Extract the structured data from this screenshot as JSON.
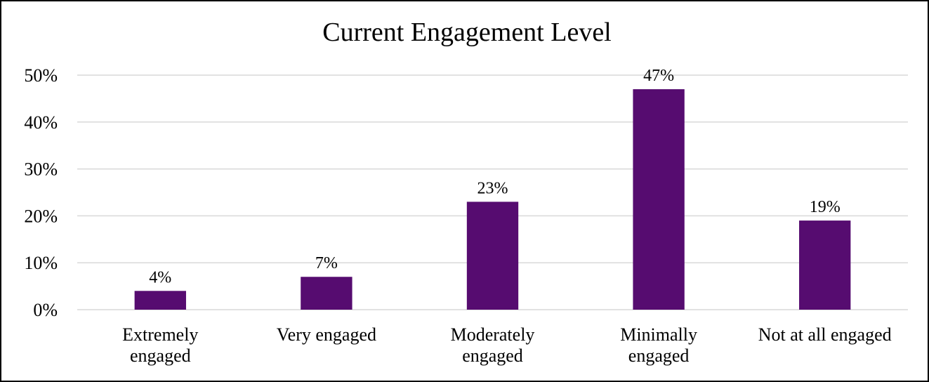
{
  "chart_data": {
    "type": "bar",
    "title": "Current Engagement Level",
    "categories": [
      "Extremely\nengaged",
      "Very engaged",
      "Moderately\nengaged",
      "Minimally\nengaged",
      "Not at all engaged"
    ],
    "values": [
      4,
      7,
      23,
      47,
      19
    ],
    "value_labels": [
      "4%",
      "7%",
      "23%",
      "47%",
      "19%"
    ],
    "color": "#560c70",
    "ylim": [
      0,
      50
    ],
    "yticks": [
      {
        "value": 0,
        "label": "0%"
      },
      {
        "value": 10,
        "label": "10%"
      },
      {
        "value": 20,
        "label": "20%"
      },
      {
        "value": 30,
        "label": "30%"
      },
      {
        "value": 40,
        "label": "40%"
      },
      {
        "value": 50,
        "label": "50%"
      }
    ],
    "grid": true
  }
}
